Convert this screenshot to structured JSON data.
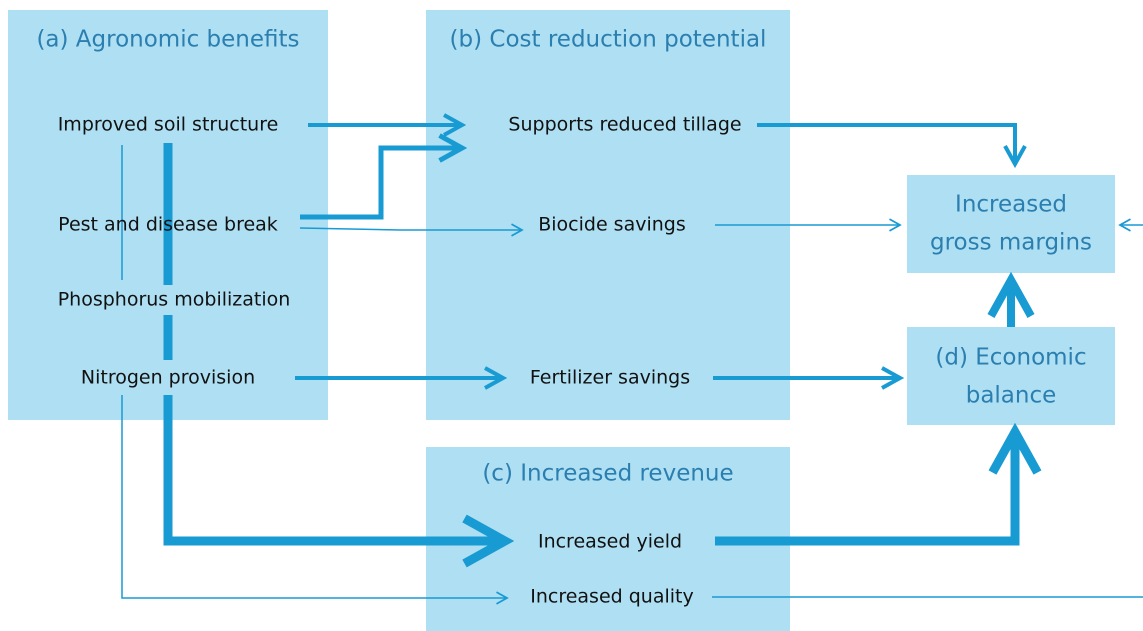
{
  "boxes": [
    {
      "title": "(a) Agronomic benefits",
      "items": [
        "Improved soil structure",
        "Pest and disease break",
        "Phosphorus mobilization",
        "Nitrogen provision"
      ]
    },
    {
      "title": "(b) Cost reduction potential",
      "items": [
        "Supports reduced tillage",
        "Biocide savings",
        "Fertilizer savings"
      ]
    },
    {
      "title": "(c) Increased revenue",
      "items": [
        "Increased yield",
        "Increased quality"
      ]
    }
  ],
  "gross_margins": {
    "lines": [
      "Increased",
      "gross margins"
    ]
  },
  "economic_balance": {
    "lines": [
      "(d) Economic",
      "balance"
    ]
  }
}
